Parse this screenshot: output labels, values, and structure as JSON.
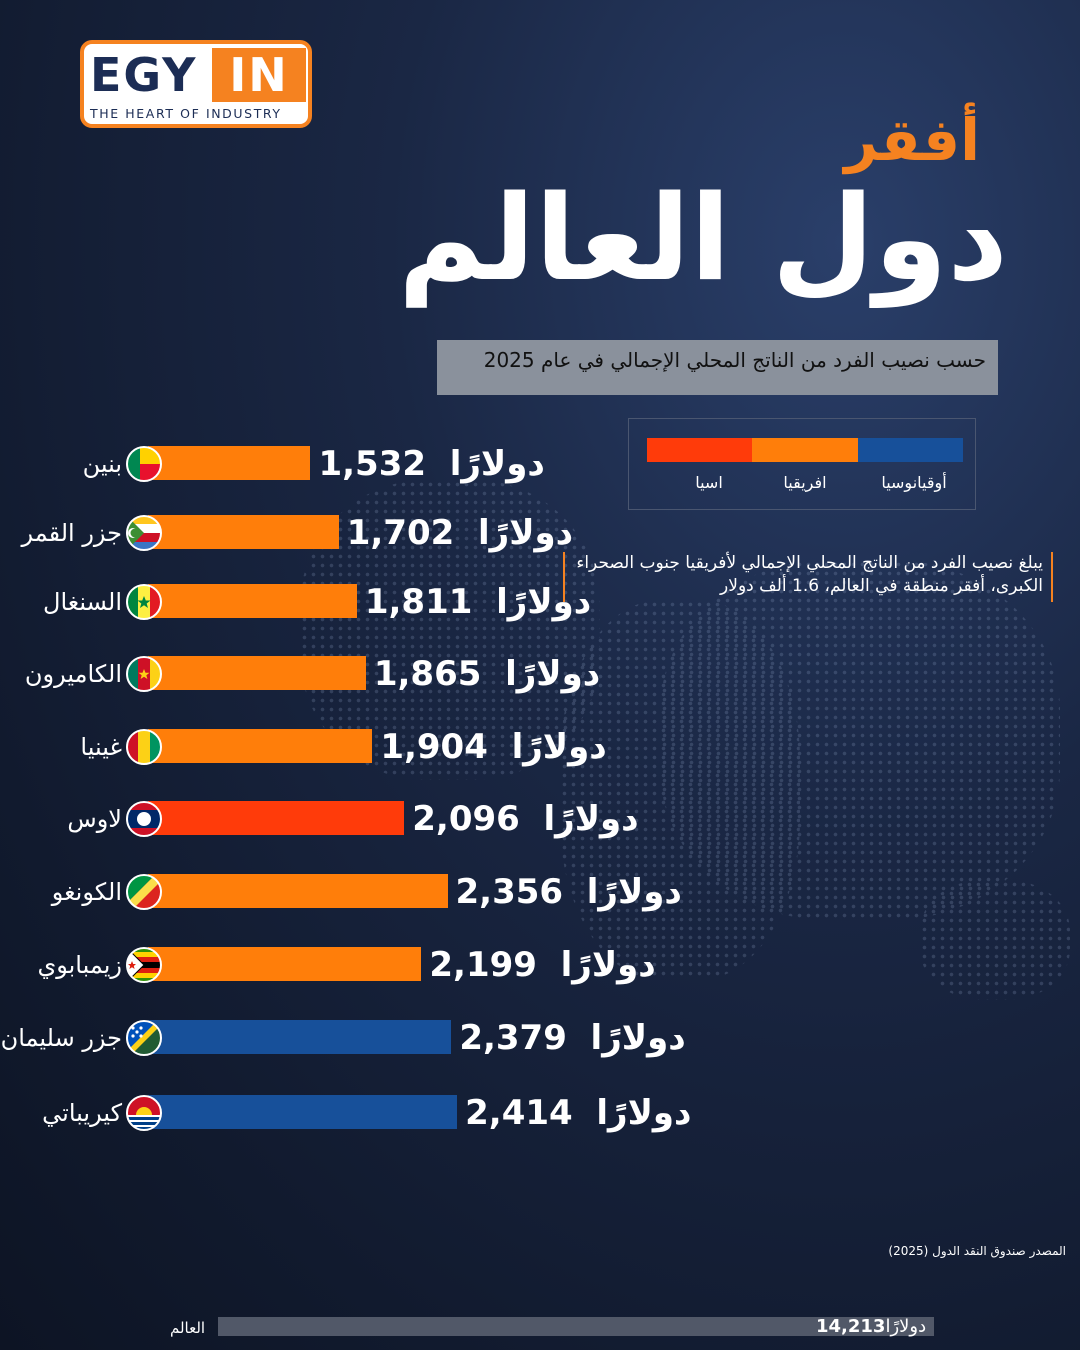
{
  "logo": {
    "brand_left": "EGY",
    "brand_right": "IN",
    "tagline": "THE HEART OF INDUSTRY"
  },
  "title_small": "أفقر",
  "title_big": "دول العالم",
  "subtitle": "حسب نصيب الفرد من الناتج المحلي الإجمالي في عام 2025",
  "note": "يبلغ نصيب الفرد من الناتج المحلي الإجمالي لأفريقيا جنوب الصحراء الكبرى، أفقر منطقة في العالم، 1.6 ألف دولار",
  "source": "المصدر صندوق النقد الدول (2025)",
  "unit_label": "دولارًا",
  "legend": [
    {
      "label": "اسيا",
      "color": "#ff3b0a"
    },
    {
      "label": "افريقيا",
      "color": "#ff7e0a"
    },
    {
      "label": "أوقيانوسيا",
      "color": "#17509a"
    }
  ],
  "chart_data": {
    "type": "bar",
    "orientation": "horizontal",
    "unit": "دولارًا",
    "categories": [
      "بنين",
      "جزر القمر",
      "السنغال",
      "الكاميرون",
      "غينيا",
      "لاوس",
      "الكونغو",
      "زيمبابوي",
      "جزر سليمان",
      "كيريباتي"
    ],
    "values": [
      1532,
      1702,
      1811,
      1865,
      1904,
      2096,
      2356,
      2199,
      2379,
      2414
    ],
    "value_labels": [
      "1,532",
      "1,702",
      "1,811",
      "1,865",
      "1,904",
      "2,096",
      "2,356",
      "2,199",
      "2,379",
      "2,414"
    ],
    "regions": [
      "افريقيا",
      "افريقيا",
      "افريقيا",
      "افريقيا",
      "افريقيا",
      "اسيا",
      "افريقيا",
      "افريقيا",
      "أوقيانوسيا",
      "أوقيانوسيا"
    ],
    "flags": [
      "benin-flag-icon",
      "comoros-flag-icon",
      "senegal-flag-icon",
      "cameroon-flag-icon",
      "guinea-flag-icon",
      "laos-flag-icon",
      "congo-flag-icon",
      "zimbabwe-flag-icon",
      "solomon-islands-flag-icon",
      "kiribati-flag-icon"
    ],
    "reference": {
      "label": "العالم",
      "value": 14213,
      "value_label": "14,213"
    }
  }
}
